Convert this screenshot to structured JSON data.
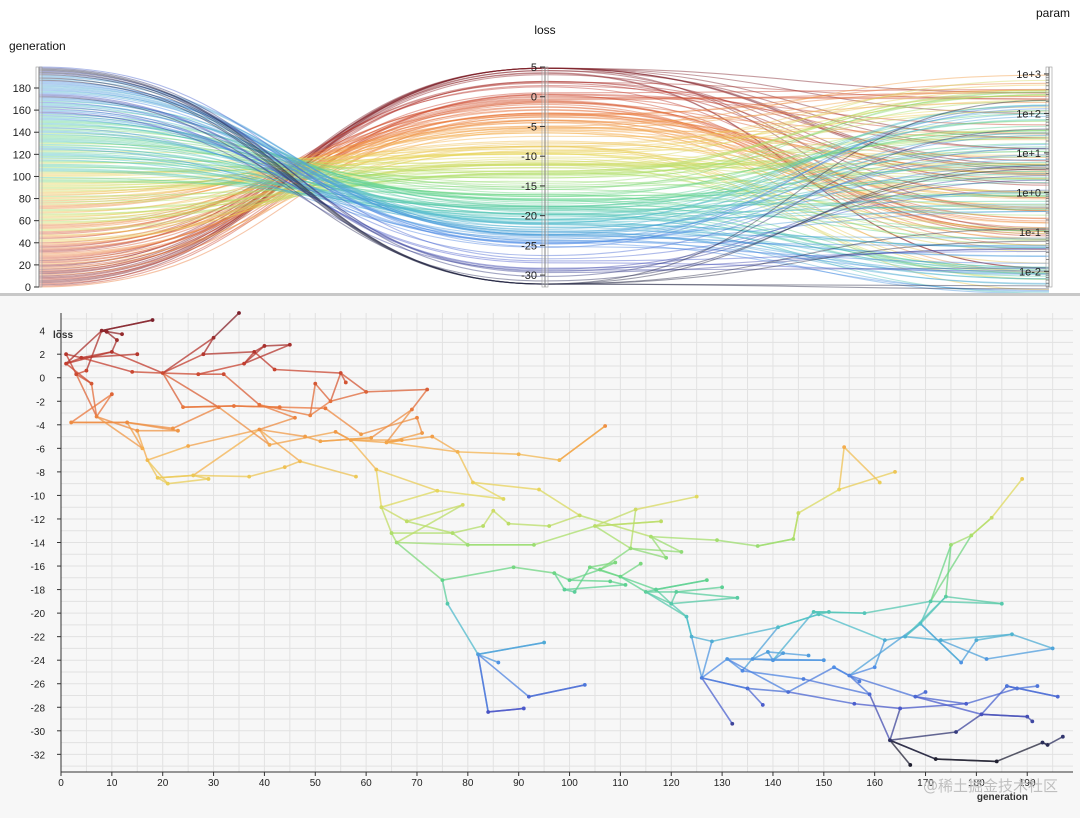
{
  "chart_data": [
    {
      "type": "parallel-coordinates",
      "axes": [
        {
          "name": "generation",
          "scale": "linear",
          "range": [
            0,
            199
          ],
          "ticks": [
            0,
            20,
            40,
            60,
            80,
            100,
            120,
            140,
            160,
            180
          ]
        },
        {
          "name": "loss",
          "scale": "linear",
          "range": [
            -32,
            5
          ],
          "ticks": [
            5,
            0,
            -5,
            -10,
            -15,
            -20,
            -25,
            -30
          ]
        },
        {
          "name": "param",
          "scale": "log",
          "range": [
            0.004,
            1500
          ],
          "ticks": [
            "1e+3",
            "1e+2",
            "1e+1",
            "1e+0",
            "1e-1",
            "1e-2"
          ]
        }
      ],
      "color_by": "loss",
      "colormap": "spectral: dark red (high loss) to orange, yellow, green, blue, black (low loss)",
      "line_count": 200,
      "grid": false
    },
    {
      "type": "scatter",
      "x_label": "generation",
      "y_label": "loss",
      "xlim": [
        0,
        199
      ],
      "ylim": [
        -33.5,
        5.5
      ],
      "x_ticks": [
        0,
        10,
        20,
        30,
        40,
        50,
        60,
        70,
        80,
        90,
        100,
        110,
        120,
        130,
        140,
        150,
        160,
        170,
        180,
        190
      ],
      "y_ticks": [
        4,
        2,
        0,
        -2,
        -4,
        -6,
        -8,
        -10,
        -12,
        -14,
        -16,
        -18,
        -20,
        -22,
        -24,
        -26,
        -28,
        -30,
        -32
      ],
      "grid": true,
      "connected_parent_child": true,
      "points": [
        {
          "x": 1,
          "y": 1.2
        },
        {
          "x": 1,
          "y": 2
        },
        {
          "x": 2,
          "y": -3.8
        },
        {
          "x": 3,
          "y": 0.3
        },
        {
          "x": 4,
          "y": 1.7
        },
        {
          "x": 5,
          "y": 0.6
        },
        {
          "x": 6,
          "y": -0.5
        },
        {
          "x": 7,
          "y": -3.3
        },
        {
          "x": 8,
          "y": 4
        },
        {
          "x": 9,
          "y": 3.9
        },
        {
          "x": 10,
          "y": -1.4
        },
        {
          "x": 10,
          "y": 2.2
        },
        {
          "x": 11,
          "y": 3.2
        },
        {
          "x": 12,
          "y": 3.7
        },
        {
          "x": 13,
          "y": -3.8
        },
        {
          "x": 14,
          "y": 0.5
        },
        {
          "x": 15,
          "y": 2
        },
        {
          "x": 15,
          "y": -4.5
        },
        {
          "x": 16,
          "y": -6
        },
        {
          "x": 17,
          "y": -7
        },
        {
          "x": 18,
          "y": 4.9
        },
        {
          "x": 19,
          "y": -8.5
        },
        {
          "x": 20,
          "y": 0.4
        },
        {
          "x": 21,
          "y": -9
        },
        {
          "x": 22,
          "y": -4.3
        },
        {
          "x": 23,
          "y": -4.5
        },
        {
          "x": 24,
          "y": -2.5
        },
        {
          "x": 25,
          "y": -5.8
        },
        {
          "x": 26,
          "y": -8.3
        },
        {
          "x": 27,
          "y": 0.3
        },
        {
          "x": 28,
          "y": 2
        },
        {
          "x": 29,
          "y": -8.6
        },
        {
          "x": 30,
          "y": 3.4
        },
        {
          "x": 31,
          "y": -2.5
        },
        {
          "x": 32,
          "y": 0.3
        },
        {
          "x": 34,
          "y": -2.4
        },
        {
          "x": 35,
          "y": 5.5
        },
        {
          "x": 36,
          "y": 1.2
        },
        {
          "x": 37,
          "y": -8.4
        },
        {
          "x": 38,
          "y": 2.2
        },
        {
          "x": 39,
          "y": -2.3
        },
        {
          "x": 39,
          "y": -4.4
        },
        {
          "x": 40,
          "y": 2.7
        },
        {
          "x": 41,
          "y": -5.7
        },
        {
          "x": 42,
          "y": 0.7
        },
        {
          "x": 43,
          "y": -2.5
        },
        {
          "x": 44,
          "y": -7.6
        },
        {
          "x": 45,
          "y": 2.8
        },
        {
          "x": 46,
          "y": -3.4
        },
        {
          "x": 47,
          "y": -7.1
        },
        {
          "x": 48,
          "y": -5
        },
        {
          "x": 49,
          "y": -3.2
        },
        {
          "x": 50,
          "y": -0.5
        },
        {
          "x": 51,
          "y": -5.4
        },
        {
          "x": 52,
          "y": -2.6
        },
        {
          "x": 53,
          "y": -2
        },
        {
          "x": 54,
          "y": -4.6
        },
        {
          "x": 55,
          "y": 0.4
        },
        {
          "x": 56,
          "y": -0.4
        },
        {
          "x": 57,
          "y": -5.3
        },
        {
          "x": 58,
          "y": -8.4
        },
        {
          "x": 59,
          "y": -4.8
        },
        {
          "x": 60,
          "y": -1.2
        },
        {
          "x": 61,
          "y": -5.1
        },
        {
          "x": 62,
          "y": -7.8
        },
        {
          "x": 63,
          "y": -11
        },
        {
          "x": 64,
          "y": -5.5
        },
        {
          "x": 65,
          "y": -13.2
        },
        {
          "x": 66,
          "y": -14
        },
        {
          "x": 67,
          "y": -5.3
        },
        {
          "x": 68,
          "y": -12.2
        },
        {
          "x": 69,
          "y": -2.7
        },
        {
          "x": 70,
          "y": -3.4
        },
        {
          "x": 71,
          "y": -4.7
        },
        {
          "x": 72,
          "y": -1
        },
        {
          "x": 73,
          "y": -5
        },
        {
          "x": 74,
          "y": -9.6
        },
        {
          "x": 75,
          "y": -17.2
        },
        {
          "x": 76,
          "y": -19.2
        },
        {
          "x": 77,
          "y": -13.2
        },
        {
          "x": 78,
          "y": -6.3
        },
        {
          "x": 79,
          "y": -10.8
        },
        {
          "x": 80,
          "y": -14.2
        },
        {
          "x": 81,
          "y": -8.9
        },
        {
          "x": 82,
          "y": -23.5
        },
        {
          "x": 83,
          "y": -12.6
        },
        {
          "x": 84,
          "y": -28.4
        },
        {
          "x": 85,
          "y": -11.3
        },
        {
          "x": 86,
          "y": -24.2
        },
        {
          "x": 87,
          "y": -10.3
        },
        {
          "x": 88,
          "y": -12.4
        },
        {
          "x": 89,
          "y": -16.1
        },
        {
          "x": 90,
          "y": -6.5
        },
        {
          "x": 91,
          "y": -28.1
        },
        {
          "x": 92,
          "y": -27.1
        },
        {
          "x": 93,
          "y": -14.2
        },
        {
          "x": 94,
          "y": -9.5
        },
        {
          "x": 95,
          "y": -22.5
        },
        {
          "x": 96,
          "y": -12.6
        },
        {
          "x": 97,
          "y": -16.6
        },
        {
          "x": 98,
          "y": -7
        },
        {
          "x": 99,
          "y": -18
        },
        {
          "x": 100,
          "y": -17.2
        },
        {
          "x": 101,
          "y": -18.2
        },
        {
          "x": 102,
          "y": -11.7
        },
        {
          "x": 103,
          "y": -26.1
        },
        {
          "x": 104,
          "y": -16.1
        },
        {
          "x": 105,
          "y": -12.6
        },
        {
          "x": 106,
          "y": -16.3
        },
        {
          "x": 107,
          "y": -4.1
        },
        {
          "x": 108,
          "y": -17.3
        },
        {
          "x": 109,
          "y": -15.7
        },
        {
          "x": 110,
          "y": -16.9
        },
        {
          "x": 111,
          "y": -17.6
        },
        {
          "x": 112,
          "y": -14.5
        },
        {
          "x": 113,
          "y": -11.2
        },
        {
          "x": 114,
          "y": -15.8
        },
        {
          "x": 115,
          "y": -18.2
        },
        {
          "x": 116,
          "y": -13.5
        },
        {
          "x": 117,
          "y": -18
        },
        {
          "x": 118,
          "y": -12.2
        },
        {
          "x": 119,
          "y": -15.3
        },
        {
          "x": 120,
          "y": -19.2
        },
        {
          "x": 121,
          "y": -18.2
        },
        {
          "x": 122,
          "y": -14.8
        },
        {
          "x": 123,
          "y": -20.3
        },
        {
          "x": 124,
          "y": -22
        },
        {
          "x": 125,
          "y": -10.1
        },
        {
          "x": 126,
          "y": -25.5
        },
        {
          "x": 127,
          "y": -17.2
        },
        {
          "x": 128,
          "y": -22.4
        },
        {
          "x": 129,
          "y": -13.8
        },
        {
          "x": 130,
          "y": -17.8
        },
        {
          "x": 131,
          "y": -23.9
        },
        {
          "x": 132,
          "y": -29.4
        },
        {
          "x": 133,
          "y": -18.7
        },
        {
          "x": 134,
          "y": -24.9
        },
        {
          "x": 135,
          "y": -26.4
        },
        {
          "x": 136,
          "y": -23.9
        },
        {
          "x": 137,
          "y": -14.3
        },
        {
          "x": 138,
          "y": -27.8
        },
        {
          "x": 139,
          "y": -23.3
        },
        {
          "x": 140,
          "y": -24
        },
        {
          "x": 141,
          "y": -21.2
        },
        {
          "x": 142,
          "y": -23.4
        },
        {
          "x": 143,
          "y": -26.7
        },
        {
          "x": 144,
          "y": -13.7
        },
        {
          "x": 145,
          "y": -11.5
        },
        {
          "x": 146,
          "y": -25.6
        },
        {
          "x": 147,
          "y": -23.6
        },
        {
          "x": 148,
          "y": -19.9
        },
        {
          "x": 149,
          "y": -20.1
        },
        {
          "x": 150,
          "y": -24
        },
        {
          "x": 151,
          "y": -19.9
        },
        {
          "x": 152,
          "y": -24.6
        },
        {
          "x": 153,
          "y": -9.5
        },
        {
          "x": 154,
          "y": -5.9
        },
        {
          "x": 155,
          "y": -25.3
        },
        {
          "x": 156,
          "y": -27.7
        },
        {
          "x": 157,
          "y": -25.8
        },
        {
          "x": 158,
          "y": -20
        },
        {
          "x": 159,
          "y": -26.9
        },
        {
          "x": 160,
          "y": -24.6
        },
        {
          "x": 161,
          "y": -8.9
        },
        {
          "x": 162,
          "y": -22.3
        },
        {
          "x": 163,
          "y": -30.8
        },
        {
          "x": 164,
          "y": -8
        },
        {
          "x": 165,
          "y": -28.1
        },
        {
          "x": 166,
          "y": -22
        },
        {
          "x": 167,
          "y": -32.9
        },
        {
          "x": 168,
          "y": -27.1
        },
        {
          "x": 169,
          "y": -20.9
        },
        {
          "x": 170,
          "y": -26.7
        },
        {
          "x": 171,
          "y": -19
        },
        {
          "x": 172,
          "y": -32.4
        },
        {
          "x": 173,
          "y": -22.3
        },
        {
          "x": 174,
          "y": -18.6
        },
        {
          "x": 175,
          "y": -14.2
        },
        {
          "x": 176,
          "y": -30.1
        },
        {
          "x": 177,
          "y": -24.2
        },
        {
          "x": 178,
          "y": -27.7
        },
        {
          "x": 179,
          "y": -13.4
        },
        {
          "x": 180,
          "y": -22.3
        },
        {
          "x": 181,
          "y": -28.6
        },
        {
          "x": 182,
          "y": -23.9
        },
        {
          "x": 183,
          "y": -11.9
        },
        {
          "x": 184,
          "y": -32.6
        },
        {
          "x": 185,
          "y": -19.2
        },
        {
          "x": 186,
          "y": -26.2
        },
        {
          "x": 187,
          "y": -21.8
        },
        {
          "x": 188,
          "y": -26.4
        },
        {
          "x": 189,
          "y": -8.6
        },
        {
          "x": 190,
          "y": -28.8
        },
        {
          "x": 191,
          "y": -29.2
        },
        {
          "x": 192,
          "y": -26.2
        },
        {
          "x": 193,
          "y": -31
        },
        {
          "x": 194,
          "y": -31.2
        },
        {
          "x": 195,
          "y": -23
        },
        {
          "x": 196,
          "y": -27.1
        },
        {
          "x": 197,
          "y": -30.5
        }
      ]
    }
  ],
  "colors": {
    "panel_divider": "#c8c8c8",
    "scatter_background": "#f7f7f7",
    "gridline": "#e2e2e2",
    "colormap_stops": [
      "#7a1f2b",
      "#c23b2e",
      "#e8743b",
      "#f5b04e",
      "#e6d85c",
      "#a9df6b",
      "#5fd38a",
      "#4fc0c8",
      "#4f8ee6",
      "#4a55c8",
      "#202030"
    ]
  },
  "watermark": "@稀土掘金技术社区"
}
